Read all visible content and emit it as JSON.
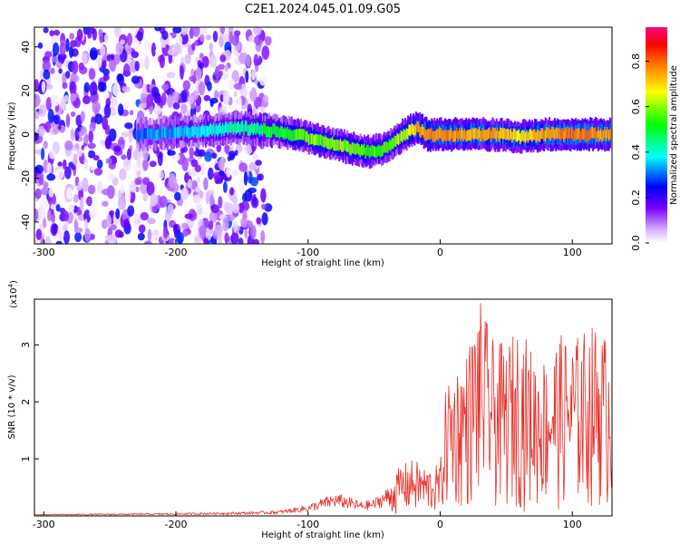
{
  "page_title": "C2E1.2024.045.01.09.G05",
  "chart_data": [
    {
      "type": "heatmap",
      "title": "C2E1.2024.045.01.09.G05",
      "xlabel": "Height of straight line (km)",
      "ylabel": "Frequency (Hz)",
      "xlim": [
        -307,
        130
      ],
      "ylim": [
        -50,
        49
      ],
      "xticks": [
        -300,
        -200,
        -100,
        0,
        100
      ],
      "yticks": [
        -40,
        -20,
        0,
        20,
        40
      ],
      "colorbar": {
        "label": "Normalized spectral amplitude",
        "range": [
          0,
          0.95
        ],
        "ticks": [
          0.0,
          0.2,
          0.4,
          0.6,
          0.8
        ],
        "colors": [
          "#ffffff",
          "#d9b3ff",
          "#7a00ff",
          "#0000ff",
          "#00ffff",
          "#00ff00",
          "#ffff00",
          "#ff7f00",
          "#ff0000",
          "#ff0080"
        ]
      },
      "ridge": {
        "x": [
          -230,
          -200,
          -170,
          -150,
          -130,
          -110,
          -90,
          -70,
          -55,
          -45,
          -35,
          -25,
          -18,
          -10,
          0,
          20,
          40,
          60,
          80,
          100,
          128
        ],
        "y": [
          0,
          1,
          2,
          3,
          2,
          0,
          -3,
          -6,
          -8,
          -7,
          -3,
          1,
          3,
          0,
          0,
          0,
          0,
          -1,
          0,
          0,
          0
        ],
        "amplitude": [
          0.25,
          0.3,
          0.35,
          0.4,
          0.45,
          0.5,
          0.55,
          0.55,
          0.5,
          0.5,
          0.55,
          0.6,
          0.7,
          0.7,
          0.75,
          0.7,
          0.7,
          0.65,
          0.7,
          0.75,
          0.7
        ]
      },
      "noise_region": {
        "x_range": [
          -307,
          -130
        ],
        "y_range": [
          -50,
          49
        ],
        "amplitude_max": 0.3
      }
    },
    {
      "type": "line",
      "xlabel": "Height of straight line (km)",
      "ylabel": "SNR (10 * v/v)",
      "y_scale_label": "(x10",
      "y_scale_exponent": "4",
      "xlim": [
        -307,
        130
      ],
      "ylim": [
        0,
        3.8
      ],
      "xticks": [
        -300,
        -200,
        -100,
        0,
        100
      ],
      "yticks": [
        1,
        2,
        3
      ],
      "series": [
        {
          "color": "#e8302a",
          "envelope_x": [
            -307,
            -250,
            -200,
            -150,
            -120,
            -100,
            -90,
            -80,
            -70,
            -60,
            -50,
            -40,
            -30,
            -20,
            -10,
            0,
            5,
            10,
            20,
            30,
            40,
            50,
            60,
            70,
            80,
            90,
            100,
            110,
            120,
            130
          ],
          "envelope_y": [
            0.03,
            0.04,
            0.05,
            0.07,
            0.1,
            0.2,
            0.3,
            0.4,
            0.35,
            0.25,
            0.3,
            0.5,
            0.9,
            1.0,
            0.85,
            0.9,
            2.5,
            2.6,
            2.9,
            3.8,
            3.1,
            3.0,
            3.4,
            2.9,
            2.8,
            3.2,
            3.1,
            3.3,
            3.4,
            3.0
          ]
        }
      ]
    }
  ]
}
